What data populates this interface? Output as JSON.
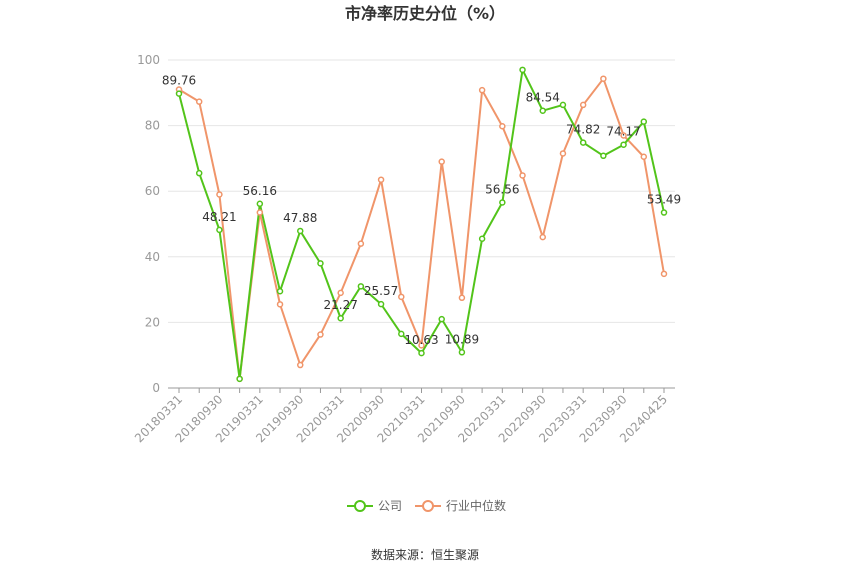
{
  "chart_data": {
    "type": "line",
    "title": "市净率历史分位（%）",
    "xlabel": "",
    "ylabel": "",
    "ylim": [
      0,
      100
    ],
    "yticks": [
      0,
      20,
      40,
      60,
      80,
      100
    ],
    "grid": true,
    "legend_position": "bottom",
    "x": [
      "20180331",
      "20180630",
      "20180930",
      "20181231",
      "20190331",
      "20190630",
      "20190930",
      "20191231",
      "20200331",
      "20200630",
      "20200930",
      "20201231",
      "20210331",
      "20210630",
      "20210930",
      "20211231",
      "20220331",
      "20220630",
      "20220930",
      "20221231",
      "20230331",
      "20230630",
      "20230930",
      "20231231",
      "20240425"
    ],
    "x_tick_labels": [
      "20180331",
      "20180930",
      "20190331",
      "20190930",
      "20200331",
      "20200930",
      "20210331",
      "20210930",
      "20220331",
      "20220930",
      "20230331",
      "20230930",
      "20240425"
    ],
    "series": [
      {
        "name": "公司",
        "color": "#52c41a",
        "values": [
          89.76,
          65.5,
          48.21,
          2.8,
          56.16,
          29.5,
          47.88,
          38.0,
          21.27,
          31.0,
          25.57,
          16.5,
          10.63,
          21.0,
          10.89,
          45.5,
          56.56,
          97.0,
          84.54,
          86.3,
          74.82,
          70.8,
          74.17,
          81.2,
          53.49
        ]
      },
      {
        "name": "行业中位数",
        "color": "#f0956a",
        "values": [
          91.0,
          87.3,
          59.0,
          2.8,
          53.5,
          25.5,
          7.0,
          16.3,
          29.0,
          44.0,
          63.5,
          27.8,
          13.0,
          69.0,
          27.5,
          90.8,
          79.8,
          64.8,
          46.0,
          71.5,
          86.3,
          94.3,
          77.0,
          70.5,
          34.8
        ]
      }
    ],
    "data_labels": [
      {
        "series": 0,
        "index": 0,
        "text": "89.76"
      },
      {
        "series": 0,
        "index": 2,
        "text": "48.21"
      },
      {
        "series": 0,
        "index": 4,
        "text": "56.16"
      },
      {
        "series": 0,
        "index": 6,
        "text": "47.88"
      },
      {
        "series": 0,
        "index": 8,
        "text": "21.27"
      },
      {
        "series": 0,
        "index": 10,
        "text": "25.57"
      },
      {
        "series": 0,
        "index": 12,
        "text": "10.63"
      },
      {
        "series": 0,
        "index": 14,
        "text": "10.89"
      },
      {
        "series": 0,
        "index": 16,
        "text": "56.56"
      },
      {
        "series": 0,
        "index": 18,
        "text": "84.54"
      },
      {
        "series": 0,
        "index": 20,
        "text": "74.82"
      },
      {
        "series": 0,
        "index": 22,
        "text": "74.17"
      },
      {
        "series": 0,
        "index": 24,
        "text": "53.49"
      }
    ],
    "source": "数据来源：恒生聚源"
  }
}
